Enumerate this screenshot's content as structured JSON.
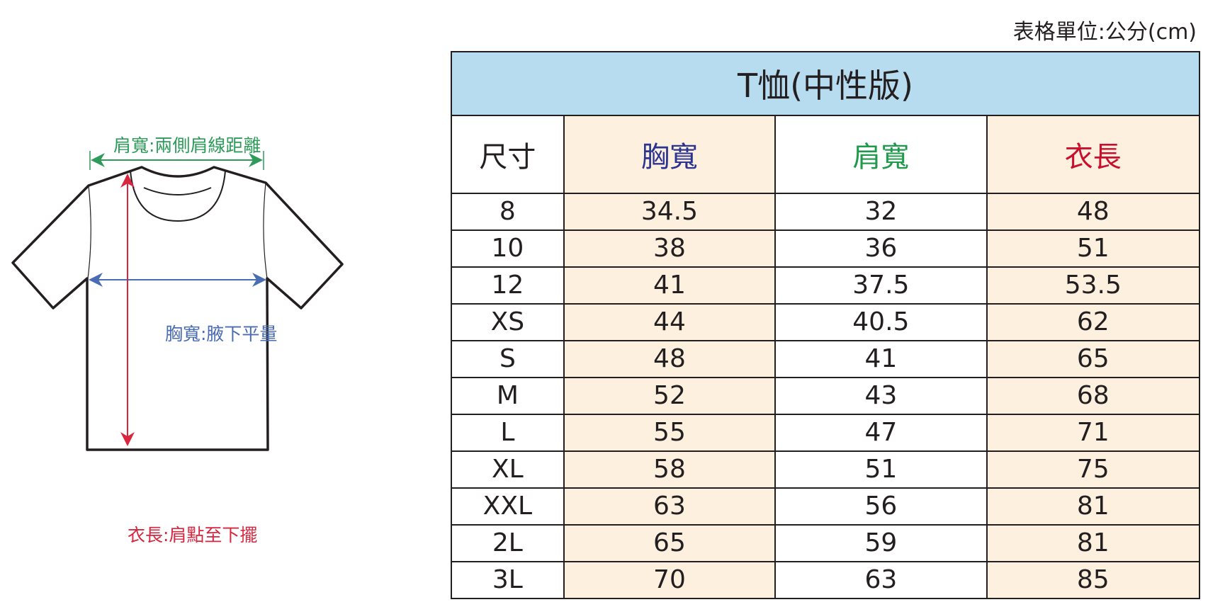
{
  "unit_note": "表格單位:公分(cm)",
  "diagram": {
    "shoulder_label": "肩寬:兩側肩線距離",
    "chest_label": "胸寬:腋下平量",
    "length_label": "衣長:肩點至下擺",
    "colors": {
      "shoulder": "#2e9b5a",
      "chest": "#4a6cb3",
      "length": "#d7263d"
    }
  },
  "table": {
    "title": "T恤(中性版)",
    "headers": [
      "尺寸",
      "胸寬",
      "肩寬",
      "衣長"
    ],
    "header_colors": [
      "#231f20",
      "#2b3590",
      "#1f9a4a",
      "#c8102e"
    ],
    "rows": [
      [
        "8",
        "34.5",
        "32",
        "48"
      ],
      [
        "10",
        "38",
        "36",
        "51"
      ],
      [
        "12",
        "41",
        "37.5",
        "53.5"
      ],
      [
        "XS",
        "44",
        "40.5",
        "62"
      ],
      [
        "S",
        "48",
        "41",
        "65"
      ],
      [
        "M",
        "52",
        "43",
        "68"
      ],
      [
        "L",
        "55",
        "47",
        "71"
      ],
      [
        "XL",
        "58",
        "51",
        "75"
      ],
      [
        "XXL",
        "63",
        "56",
        "81"
      ],
      [
        "2L",
        "65",
        "59",
        "81"
      ],
      [
        "3L",
        "70",
        "63",
        "85"
      ]
    ]
  }
}
